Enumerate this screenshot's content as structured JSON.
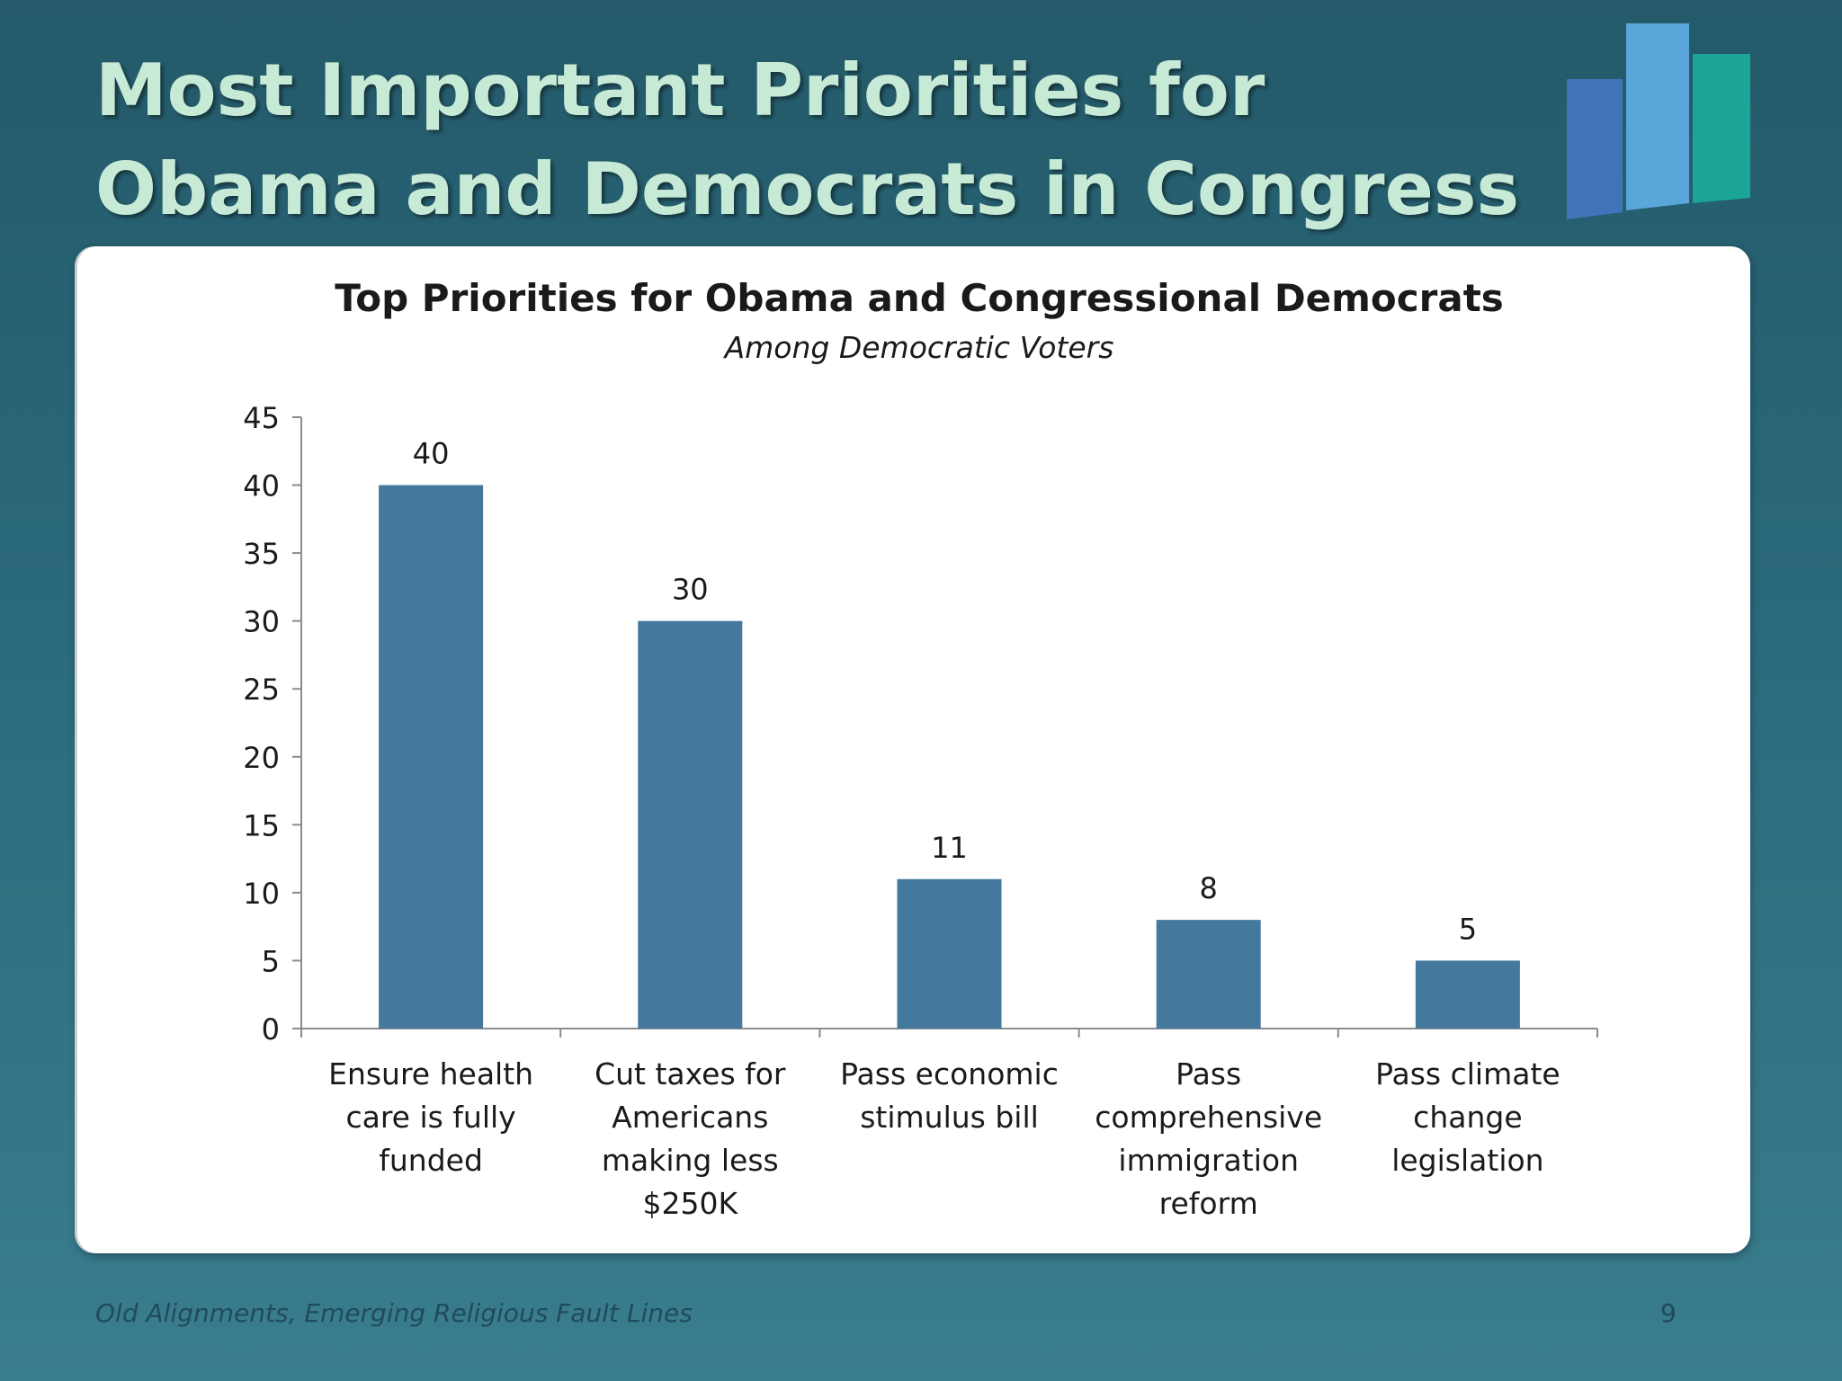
{
  "slide": {
    "title": "Most Important Priorities for Obama and Democrats in Congress",
    "footer": "Old Alignments, Emerging Religious Fault Lines",
    "page_number": "9"
  },
  "logo": {
    "colors": [
      "#3f75b8",
      "#5aa5d9",
      "#1aa596"
    ]
  },
  "colors": {
    "bar": "#44799d",
    "axis": "#8c8c8c",
    "text": "#1a1a1a",
    "title_text": "#c7ead6"
  },
  "chart_data": {
    "type": "bar",
    "title": "Top Priorities for Obama and Congressional Democrats",
    "subtitle": "Among Democratic Voters",
    "categories": [
      [
        "Ensure health",
        "care is fully",
        "funded"
      ],
      [
        "Cut taxes for",
        "Americans",
        "making less",
        "$250K"
      ],
      [
        "Pass economic",
        "stimulus bill"
      ],
      [
        "Pass",
        "comprehensive",
        "immigration",
        "reform"
      ],
      [
        "Pass climate",
        "change",
        "legislation"
      ]
    ],
    "values": [
      40,
      30,
      11,
      8,
      5
    ],
    "data_labels": [
      "40",
      "30",
      "11",
      "8",
      "5"
    ],
    "ylim": [
      0,
      45
    ],
    "yticks": [
      0,
      5,
      10,
      15,
      20,
      25,
      30,
      35,
      40,
      45
    ],
    "grid": false,
    "legend": "none",
    "xlabel": "",
    "ylabel": ""
  }
}
